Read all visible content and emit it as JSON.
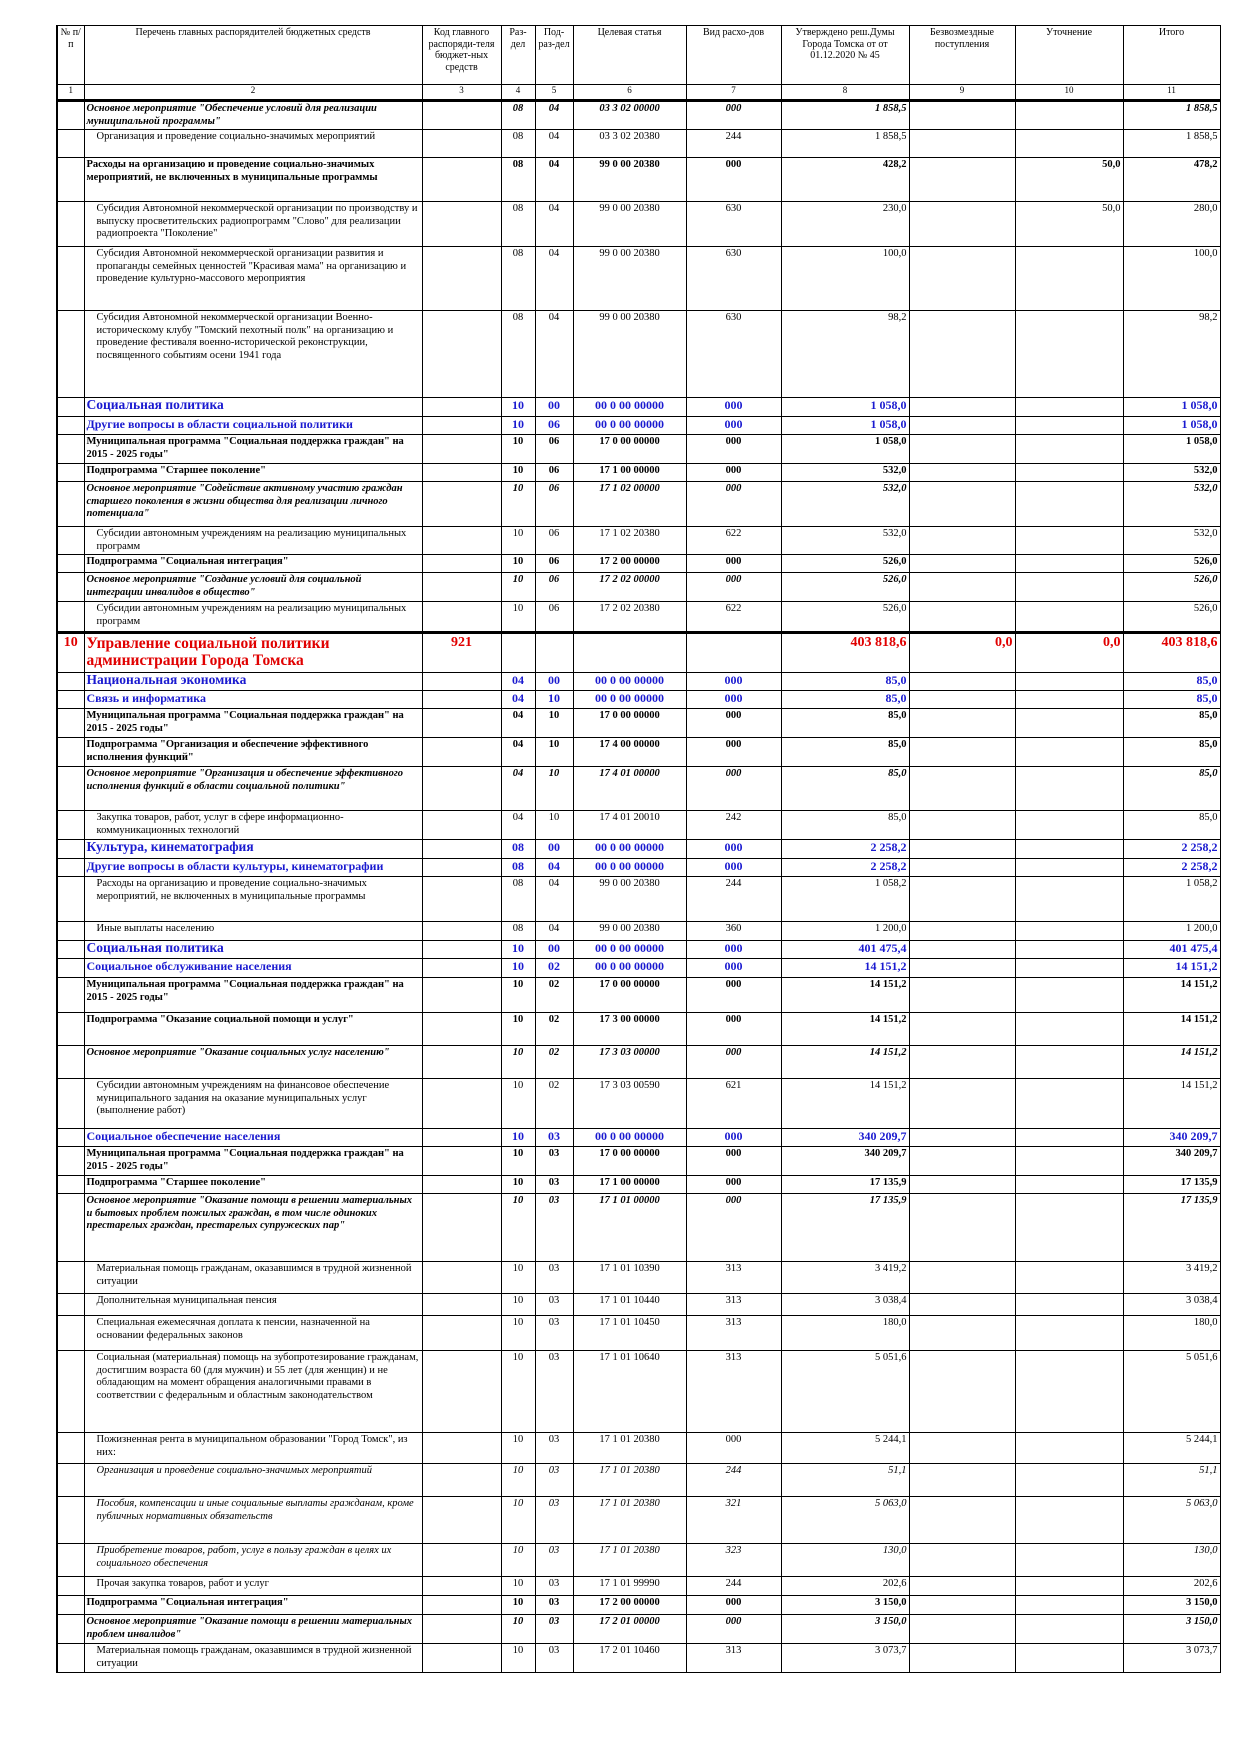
{
  "table": {
    "header": [
      "№ п/п",
      "Перечень главных распорядителей бюджетных средств",
      "Код главного распоряди-теля бюджет-ных средств",
      "Раз-дел",
      "Под-раз-дел",
      "Целевая статья",
      "Вид расхо-дов",
      "Утверждено реш.Думы Города Томска от от 01.12.2020 № 45",
      "Безвозмездные поступления",
      "Уточнение",
      "Итого"
    ],
    "numbers": [
      "1",
      "2",
      "3",
      "4",
      "5",
      "6",
      "7",
      "8",
      "9",
      "10",
      "11"
    ],
    "rows": [
      [
        null,
        "Основное мероприятие \"Обеспечение условий для реализации муниципальной программы\"",
        null,
        "08",
        "04",
        "03 3 02 00000",
        "000",
        "1 858,5",
        null,
        null,
        "1 858,5"
      ],
      [
        null,
        "Организация и проведение социально-значимых мероприятий",
        null,
        "08",
        "04",
        "03 3 02 20380",
        "244",
        "1 858,5",
        null,
        null,
        "1 858,5"
      ],
      [
        null,
        "Расходы на организацию и проведение социально-значимых мероприятий, не включенных в муниципальные программы",
        null,
        "08",
        "04",
        "99 0 00 20380",
        "000",
        "428,2",
        null,
        "50,0",
        "478,2"
      ],
      [
        null,
        "Субсидия Автономной некоммерческой организации по производству и выпуску просветительских радиопрограмм \"Слово\" для реализации радиопроекта \"Поколение\"",
        null,
        "08",
        "04",
        "99 0 00 20380",
        "630",
        "230,0",
        null,
        "50,0",
        "280,0"
      ],
      [
        null,
        "Субсидия Автономной некоммерческой организации развития и пропаганды семейных ценностей \"Красивая мама\" на организацию и проведение культурно-массового мероприятия",
        null,
        "08",
        "04",
        "99 0 00 20380",
        "630",
        "100,0",
        null,
        null,
        "100,0"
      ],
      [
        null,
        "Субсидия Автономной некоммерческой организации Военно-историческому клубу \"Томский пехотный полк\" на организацию и проведение фестиваля военно-исторической реконструкции, посвященного событиям осени 1941 года",
        null,
        "08",
        "04",
        "99 0 00 20380",
        "630",
        "98,2",
        null,
        null,
        "98,2"
      ],
      [
        null,
        "Социальная политика",
        null,
        "10",
        "00",
        "00 0 00 00000",
        "000",
        "1 058,0",
        null,
        null,
        "1 058,0"
      ],
      [
        null,
        "Другие вопросы в области социальной политики",
        null,
        "10",
        "06",
        "00 0 00 00000",
        "000",
        "1 058,0",
        null,
        null,
        "1 058,0"
      ],
      [
        null,
        "Муниципальная программа \"Социальная поддержка граждан\" на 2015 - 2025 годы\"",
        null,
        "10",
        "06",
        "17 0 00 00000",
        "000",
        "1 058,0",
        null,
        null,
        "1 058,0"
      ],
      [
        null,
        "Подпрограмма \"Старшее поколение\"",
        null,
        "10",
        "06",
        "17 1 00 00000",
        "000",
        "532,0",
        null,
        null,
        "532,0"
      ],
      [
        null,
        "Основное мероприятие \"Содействие активному участию граждан старшего поколения в жизни общества для реализации личного потенциала\"",
        null,
        "10",
        "06",
        "17 1 02 00000",
        "000",
        "532,0",
        null,
        null,
        "532,0"
      ],
      [
        null,
        "Субсидии автономным учреждениям на реализацию муниципальных программ",
        null,
        "10",
        "06",
        "17 1 02 20380",
        "622",
        "532,0",
        null,
        null,
        "532,0"
      ],
      [
        null,
        "Подпрограмма \"Социальная интеграция\"",
        null,
        "10",
        "06",
        "17 2 00 00000",
        "000",
        "526,0",
        null,
        null,
        "526,0"
      ],
      [
        null,
        "Основное мероприятие \"Создание условий для социальной интеграции инвалидов в общество\"",
        null,
        "10",
        "06",
        "17 2 02 00000",
        "000",
        "526,0",
        null,
        null,
        "526,0"
      ],
      [
        null,
        "Субсидии автономным учреждениям на реализацию муниципальных программ",
        null,
        "10",
        "06",
        "17 2 02 20380",
        "622",
        "526,0",
        null,
        null,
        "526,0"
      ],
      [
        "10",
        "Управление социальной политики администрации Города Томска",
        "921",
        null,
        null,
        null,
        null,
        "403 818,6",
        "0,0",
        "0,0",
        "403 818,6"
      ],
      [
        null,
        "Национальная экономика",
        null,
        "04",
        "00",
        "00 0 00 00000",
        "000",
        "85,0",
        null,
        null,
        "85,0"
      ],
      [
        null,
        "Связь и информатика",
        null,
        "04",
        "10",
        "00 0 00 00000",
        "000",
        "85,0",
        null,
        null,
        "85,0"
      ],
      [
        null,
        "Муниципальная программа \"Социальная поддержка граждан\" на 2015 - 2025 годы\"",
        null,
        "04",
        "10",
        "17 0 00 00000",
        "000",
        "85,0",
        null,
        null,
        "85,0"
      ],
      [
        null,
        "Подпрограмма \"Организация и обеспечение эффективного исполнения функций\"",
        null,
        "04",
        "10",
        "17 4 00 00000",
        "000",
        "85,0",
        null,
        null,
        "85,0"
      ],
      [
        null,
        "Основное мероприятие \"Организация и обеспечение эффективного исполнения функций в области социальной политики\"",
        null,
        "04",
        "10",
        "17 4 01 00000",
        "000",
        "85,0",
        null,
        null,
        "85,0"
      ],
      [
        null,
        "Закупка товаров, работ, услуг в сфере информационно-коммуникационных технологий",
        null,
        "04",
        "10",
        "17 4 01 20010",
        "242",
        "85,0",
        null,
        null,
        "85,0"
      ],
      [
        null,
        "Культура, кинематография",
        null,
        "08",
        "00",
        "00 0 00 00000",
        "000",
        "2 258,2",
        null,
        null,
        "2 258,2"
      ],
      [
        null,
        "Другие вопросы в области культуры, кинематографии",
        null,
        "08",
        "04",
        "00 0 00 00000",
        "000",
        "2 258,2",
        null,
        null,
        "2 258,2"
      ],
      [
        null,
        "Расходы на организацию и проведение социально-значимых мероприятий, не включенных в муниципальные программы",
        null,
        "08",
        "04",
        "99 0 00 20380",
        "244",
        "1 058,2",
        null,
        null,
        "1 058,2"
      ],
      [
        null,
        "Иные выплаты населению",
        null,
        "08",
        "04",
        "99 0 00 20380",
        "360",
        "1 200,0",
        null,
        null,
        "1 200,0"
      ],
      [
        null,
        "Социальная политика",
        null,
        "10",
        "00",
        "00 0 00 00000",
        "000",
        "401 475,4",
        null,
        null,
        "401 475,4"
      ],
      [
        null,
        "Социальное обслуживание населения",
        null,
        "10",
        "02",
        "00 0 00 00000",
        "000",
        "14 151,2",
        null,
        null,
        "14 151,2"
      ],
      [
        null,
        "Муниципальная программа \"Социальная поддержка граждан\" на 2015 - 2025 годы\"",
        null,
        "10",
        "02",
        "17 0 00 00000",
        "000",
        "14 151,2",
        null,
        null,
        "14 151,2"
      ],
      [
        null,
        "Подпрограмма \"Оказание социальной помощи и услуг\"",
        null,
        "10",
        "02",
        "17 3 00 00000",
        "000",
        "14 151,2",
        null,
        null,
        "14 151,2"
      ],
      [
        null,
        "Основное мероприятие \"Оказание социальных услуг населению\"",
        null,
        "10",
        "02",
        "17 3 03 00000",
        "000",
        "14 151,2",
        null,
        null,
        "14 151,2"
      ],
      [
        null,
        "Субсидии автономным учреждениям на финансовое обеспечение муниципального задания на оказание муниципальных услуг (выполнение работ)",
        null,
        "10",
        "02",
        "17 3 03 00590",
        "621",
        "14 151,2",
        null,
        null,
        "14 151,2"
      ],
      [
        null,
        "Социальное обеспечение населения",
        null,
        "10",
        "03",
        "00 0 00 00000",
        "000",
        "340 209,7",
        null,
        null,
        "340 209,7"
      ],
      [
        null,
        "Муниципальная программа \"Социальная поддержка граждан\" на 2015 - 2025 годы\"",
        null,
        "10",
        "03",
        "17 0 00 00000",
        "000",
        "340 209,7",
        null,
        null,
        "340 209,7"
      ],
      [
        null,
        "Подпрограмма \"Старшее поколение\"",
        null,
        "10",
        "03",
        "17 1 00 00000",
        "000",
        "17 135,9",
        null,
        null,
        "17 135,9"
      ],
      [
        null,
        "Основное мероприятие \"Оказание помощи в решении материальных и бытовых проблем пожилых граждан, в том числе одиноких престарелых граждан, престарелых супружеских пар\"",
        null,
        "10",
        "03",
        "17 1 01 00000",
        "000",
        "17 135,9",
        null,
        null,
        "17 135,9"
      ],
      [
        null,
        "Материальная помощь гражданам, оказавшимся в трудной жизненной ситуации",
        null,
        "10",
        "03",
        "17 1 01 10390",
        "313",
        "3 419,2",
        null,
        null,
        "3 419,2"
      ],
      [
        null,
        "Дополнительная муниципальная пенсия",
        null,
        "10",
        "03",
        "17 1 01 10440",
        "313",
        "3 038,4",
        null,
        null,
        "3 038,4"
      ],
      [
        null,
        "Специальная ежемесячная доплата к пенсии, назначенной на основании федеральных законов",
        null,
        "10",
        "03",
        "17 1 01 10450",
        "313",
        "180,0",
        null,
        null,
        "180,0"
      ],
      [
        null,
        "Социальная (материальная) помощь на зубопротезирование гражданам, достигшим возраста 60 (для мужчин) и 55 лет (для женщин) и не обладающим на момент обращения аналогичными правами в соответствии с федеральным и областным законодательством",
        null,
        "10",
        "03",
        "17 1 01 10640",
        "313",
        "5 051,6",
        null,
        null,
        "5 051,6"
      ],
      [
        null,
        "Пожизненная рента в муниципальном образовании \"Город Томск\", из них:",
        null,
        "10",
        "03",
        "17 1 01 20380",
        "000",
        "5 244,1",
        null,
        null,
        "5 244,1"
      ],
      [
        null,
        "Организация и проведение социально-значимых мероприятий",
        null,
        "10",
        "03",
        "17 1 01 20380",
        "244",
        "51,1",
        null,
        null,
        "51,1"
      ],
      [
        null,
        "Пособия, компенсации и иные социальные выплаты гражданам, кроме публичных нормативных обязательств",
        null,
        "10",
        "03",
        "17 1 01 20380",
        "321",
        "5 063,0",
        null,
        null,
        "5 063,0"
      ],
      [
        null,
        "Приобретение товаров, работ, услуг в пользу граждан в целях их социального обеспечения",
        null,
        "10",
        "03",
        "17 1 01 20380",
        "323",
        "130,0",
        null,
        null,
        "130,0"
      ],
      [
        null,
        "Прочая закупка товаров, работ и услуг",
        null,
        "10",
        "03",
        "17 1 01 99990",
        "244",
        "202,6",
        null,
        null,
        "202,6"
      ],
      [
        null,
        "Подпрограмма \"Социальная интеграция\"",
        null,
        "10",
        "03",
        "17 2 00 00000",
        "000",
        "3 150,0",
        null,
        null,
        "3 150,0"
      ],
      [
        null,
        "Основное мероприятие \"Оказание помощи в решении материальных проблем инвалидов\"",
        null,
        "10",
        "03",
        "17 2 01 00000",
        "000",
        "3 150,0",
        null,
        null,
        "3 150,0"
      ],
      [
        null,
        "Материальная помощь гражданам, оказавшимся в трудной жизненной ситуации",
        null,
        "10",
        "03",
        "17 2 01 10460",
        "313",
        "3 073,7",
        null,
        null,
        "3 073,7"
      ]
    ]
  }
}
